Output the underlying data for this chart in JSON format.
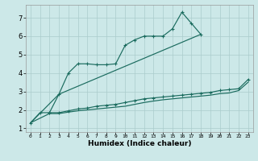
{
  "xlabel": "Humidex (Indice chaleur)",
  "bg_color": "#cce8e8",
  "grid_color": "#aacccc",
  "line_color": "#1a6b5e",
  "xlim": [
    -0.5,
    23.5
  ],
  "ylim": [
    0.8,
    7.7
  ],
  "xticks": [
    0,
    1,
    2,
    3,
    4,
    5,
    6,
    7,
    8,
    9,
    10,
    11,
    12,
    13,
    14,
    15,
    16,
    17,
    18,
    19,
    20,
    21,
    22,
    23
  ],
  "yticks": [
    1,
    2,
    3,
    4,
    5,
    6,
    7
  ],
  "line1_x": [
    0,
    1,
    2,
    3,
    4,
    5,
    6,
    7,
    8,
    9,
    10,
    11,
    12,
    13,
    14,
    15,
    16,
    17,
    18
  ],
  "line1_y": [
    1.3,
    1.85,
    1.85,
    2.85,
    4.0,
    4.5,
    4.5,
    4.45,
    4.45,
    4.5,
    5.5,
    5.8,
    6.0,
    6.0,
    6.0,
    6.4,
    7.3,
    6.7,
    6.1
  ],
  "line2_x": [
    0,
    3,
    18
  ],
  "line2_y": [
    1.3,
    2.85,
    6.1
  ],
  "line3_x": [
    2,
    3,
    4,
    5,
    6,
    7,
    8,
    9,
    10,
    11,
    12,
    13,
    14,
    15,
    16,
    17,
    18,
    19,
    20,
    21,
    22,
    23
  ],
  "line3_y": [
    1.85,
    1.85,
    1.95,
    2.05,
    2.1,
    2.2,
    2.25,
    2.3,
    2.4,
    2.5,
    2.6,
    2.65,
    2.7,
    2.75,
    2.8,
    2.85,
    2.9,
    2.95,
    3.05,
    3.1,
    3.15,
    3.65
  ],
  "line4_x": [
    0,
    2,
    3,
    4,
    5,
    6,
    7,
    8,
    9,
    10,
    11,
    12,
    13,
    14,
    15,
    16,
    17,
    18,
    19,
    20,
    21,
    22,
    23
  ],
  "line4_y": [
    1.3,
    1.8,
    1.8,
    1.88,
    1.95,
    2.0,
    2.05,
    2.1,
    2.15,
    2.2,
    2.3,
    2.4,
    2.48,
    2.55,
    2.6,
    2.65,
    2.7,
    2.75,
    2.8,
    2.88,
    2.92,
    3.05,
    3.5
  ]
}
